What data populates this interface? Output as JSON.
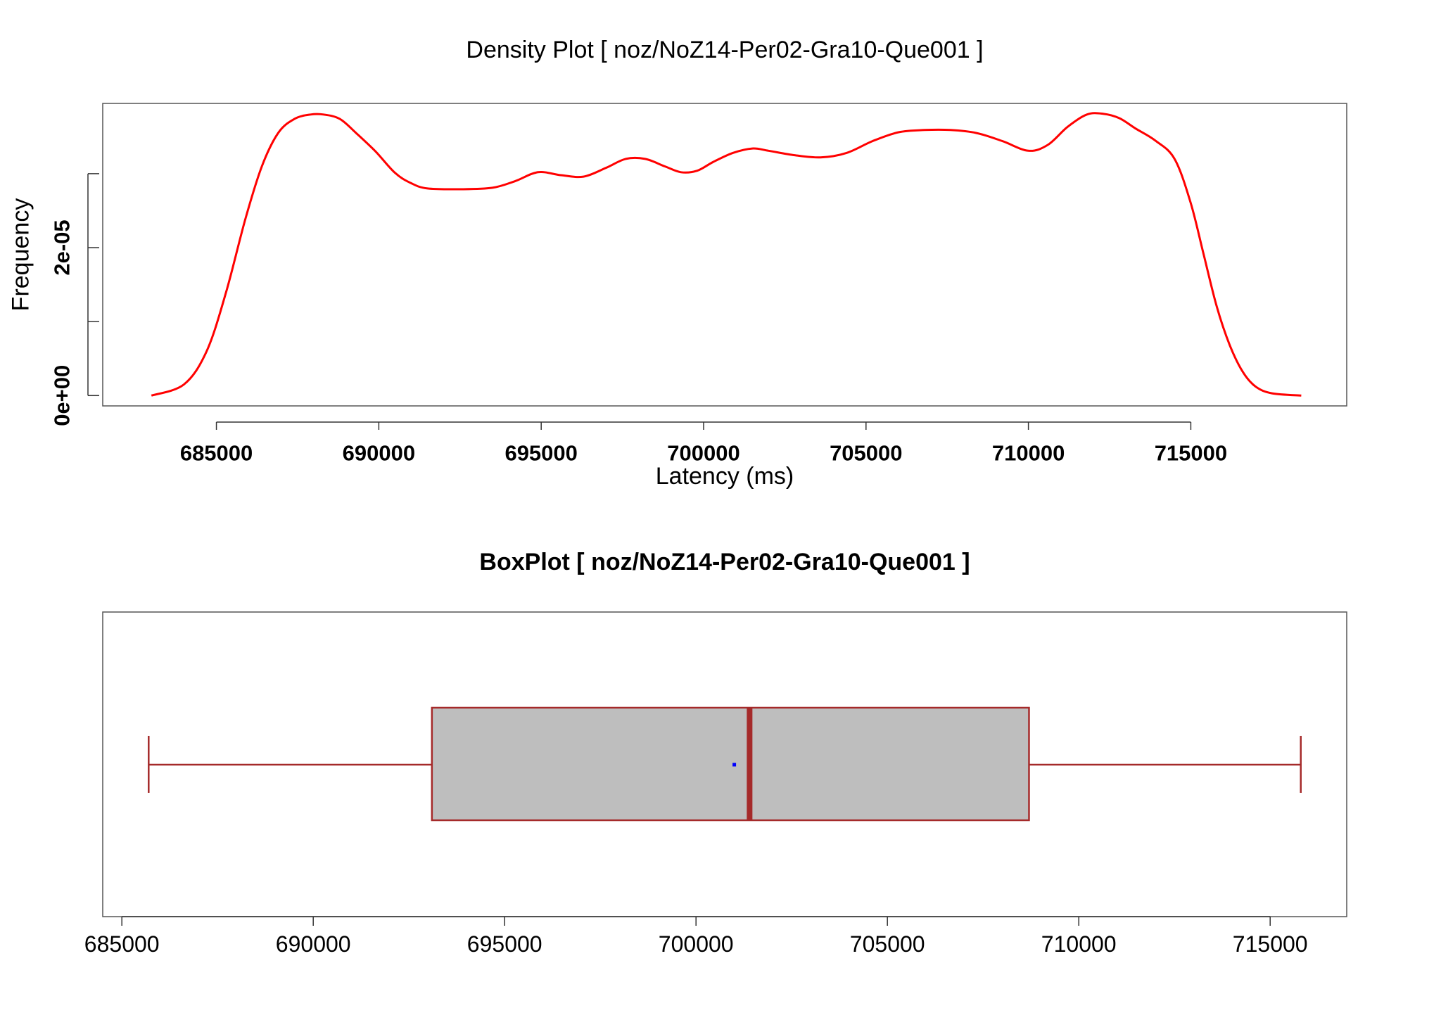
{
  "chart_data": [
    {
      "type": "line",
      "title": "Density Plot [ noz/NoZ14-Per02-Gra10-Que001 ]",
      "xlabel": "Latency (ms)",
      "ylabel": "Frequency",
      "xlim": [
        681500,
        719800
      ],
      "ylim": [
        -1.4e-06,
        3.95e-05
      ],
      "xticks": [
        685000,
        690000,
        695000,
        700000,
        705000,
        710000,
        715000
      ],
      "xtick_labels": [
        "685000",
        "690000",
        "695000",
        "700000",
        "705000",
        "710000",
        "715000"
      ],
      "yticks": [
        0,
        1e-05,
        2e-05,
        3e-05
      ],
      "ytick_labels": {
        "0": "0e+00",
        "2": "2e-05"
      },
      "color": "#ff0000",
      "series": [
        {
          "x": [
            683000,
            684000,
            684700,
            685300,
            685900,
            686400,
            686900,
            687400,
            687900,
            688300,
            688800,
            689300,
            689900,
            690500,
            691000,
            691500,
            692500,
            693500,
            694200,
            694900,
            695600,
            696300,
            697000,
            697600,
            698200,
            698800,
            699300,
            699800,
            700300,
            700900,
            701500,
            702000,
            702800,
            703600,
            704400,
            705200,
            706000,
            706800,
            707600,
            708400,
            709200,
            710000,
            710600,
            711200,
            711800,
            712300,
            712800,
            713300,
            713900,
            714500,
            715000,
            715400,
            715800,
            716200,
            716600,
            717000,
            717500,
            718400
          ],
          "y": [
            0,
            1.5e-06,
            6e-06,
            1.4e-05,
            2.4e-05,
            3.1e-05,
            3.55e-05,
            3.74e-05,
            3.8e-05,
            3.8e-05,
            3.74e-05,
            3.55e-05,
            3.3e-05,
            3.01e-05,
            2.87e-05,
            2.8e-05,
            2.79e-05,
            2.81e-05,
            2.9e-05,
            3.02e-05,
            2.98e-05,
            2.96e-05,
            3.08e-05,
            3.2e-05,
            3.2e-05,
            3.1e-05,
            3.02e-05,
            3.04e-05,
            3.16e-05,
            3.28e-05,
            3.34e-05,
            3.31e-05,
            3.25e-05,
            3.22e-05,
            3.28e-05,
            3.44e-05,
            3.56e-05,
            3.59e-05,
            3.59e-05,
            3.55e-05,
            3.44e-05,
            3.31e-05,
            3.39e-05,
            3.63e-05,
            3.8e-05,
            3.81e-05,
            3.75e-05,
            3.61e-05,
            3.45e-05,
            3.2e-05,
            2.6e-05,
            1.9e-05,
            1.2e-05,
            6.8e-06,
            3.2e-06,
            1.2e-06,
            3e-07,
            0
          ]
        }
      ]
    },
    {
      "type": "box",
      "title": "BoxPlot [ noz/NoZ14-Per02-Gra10-Que001 ]",
      "xlim": [
        684500,
        717000
      ],
      "xticks": [
        685000,
        690000,
        695000,
        700000,
        705000,
        710000,
        715000
      ],
      "xtick_labels": [
        "685000",
        "690000",
        "695000",
        "700000",
        "705000",
        "710000",
        "715000"
      ],
      "whisker_low": 685700,
      "q1": 693100,
      "median": 701400,
      "q3": 708700,
      "whisker_high": 715800,
      "mean": 701000,
      "box_fill": "#bebebe",
      "border_color": "#a52a2a",
      "mean_color": "#0000ff"
    }
  ]
}
